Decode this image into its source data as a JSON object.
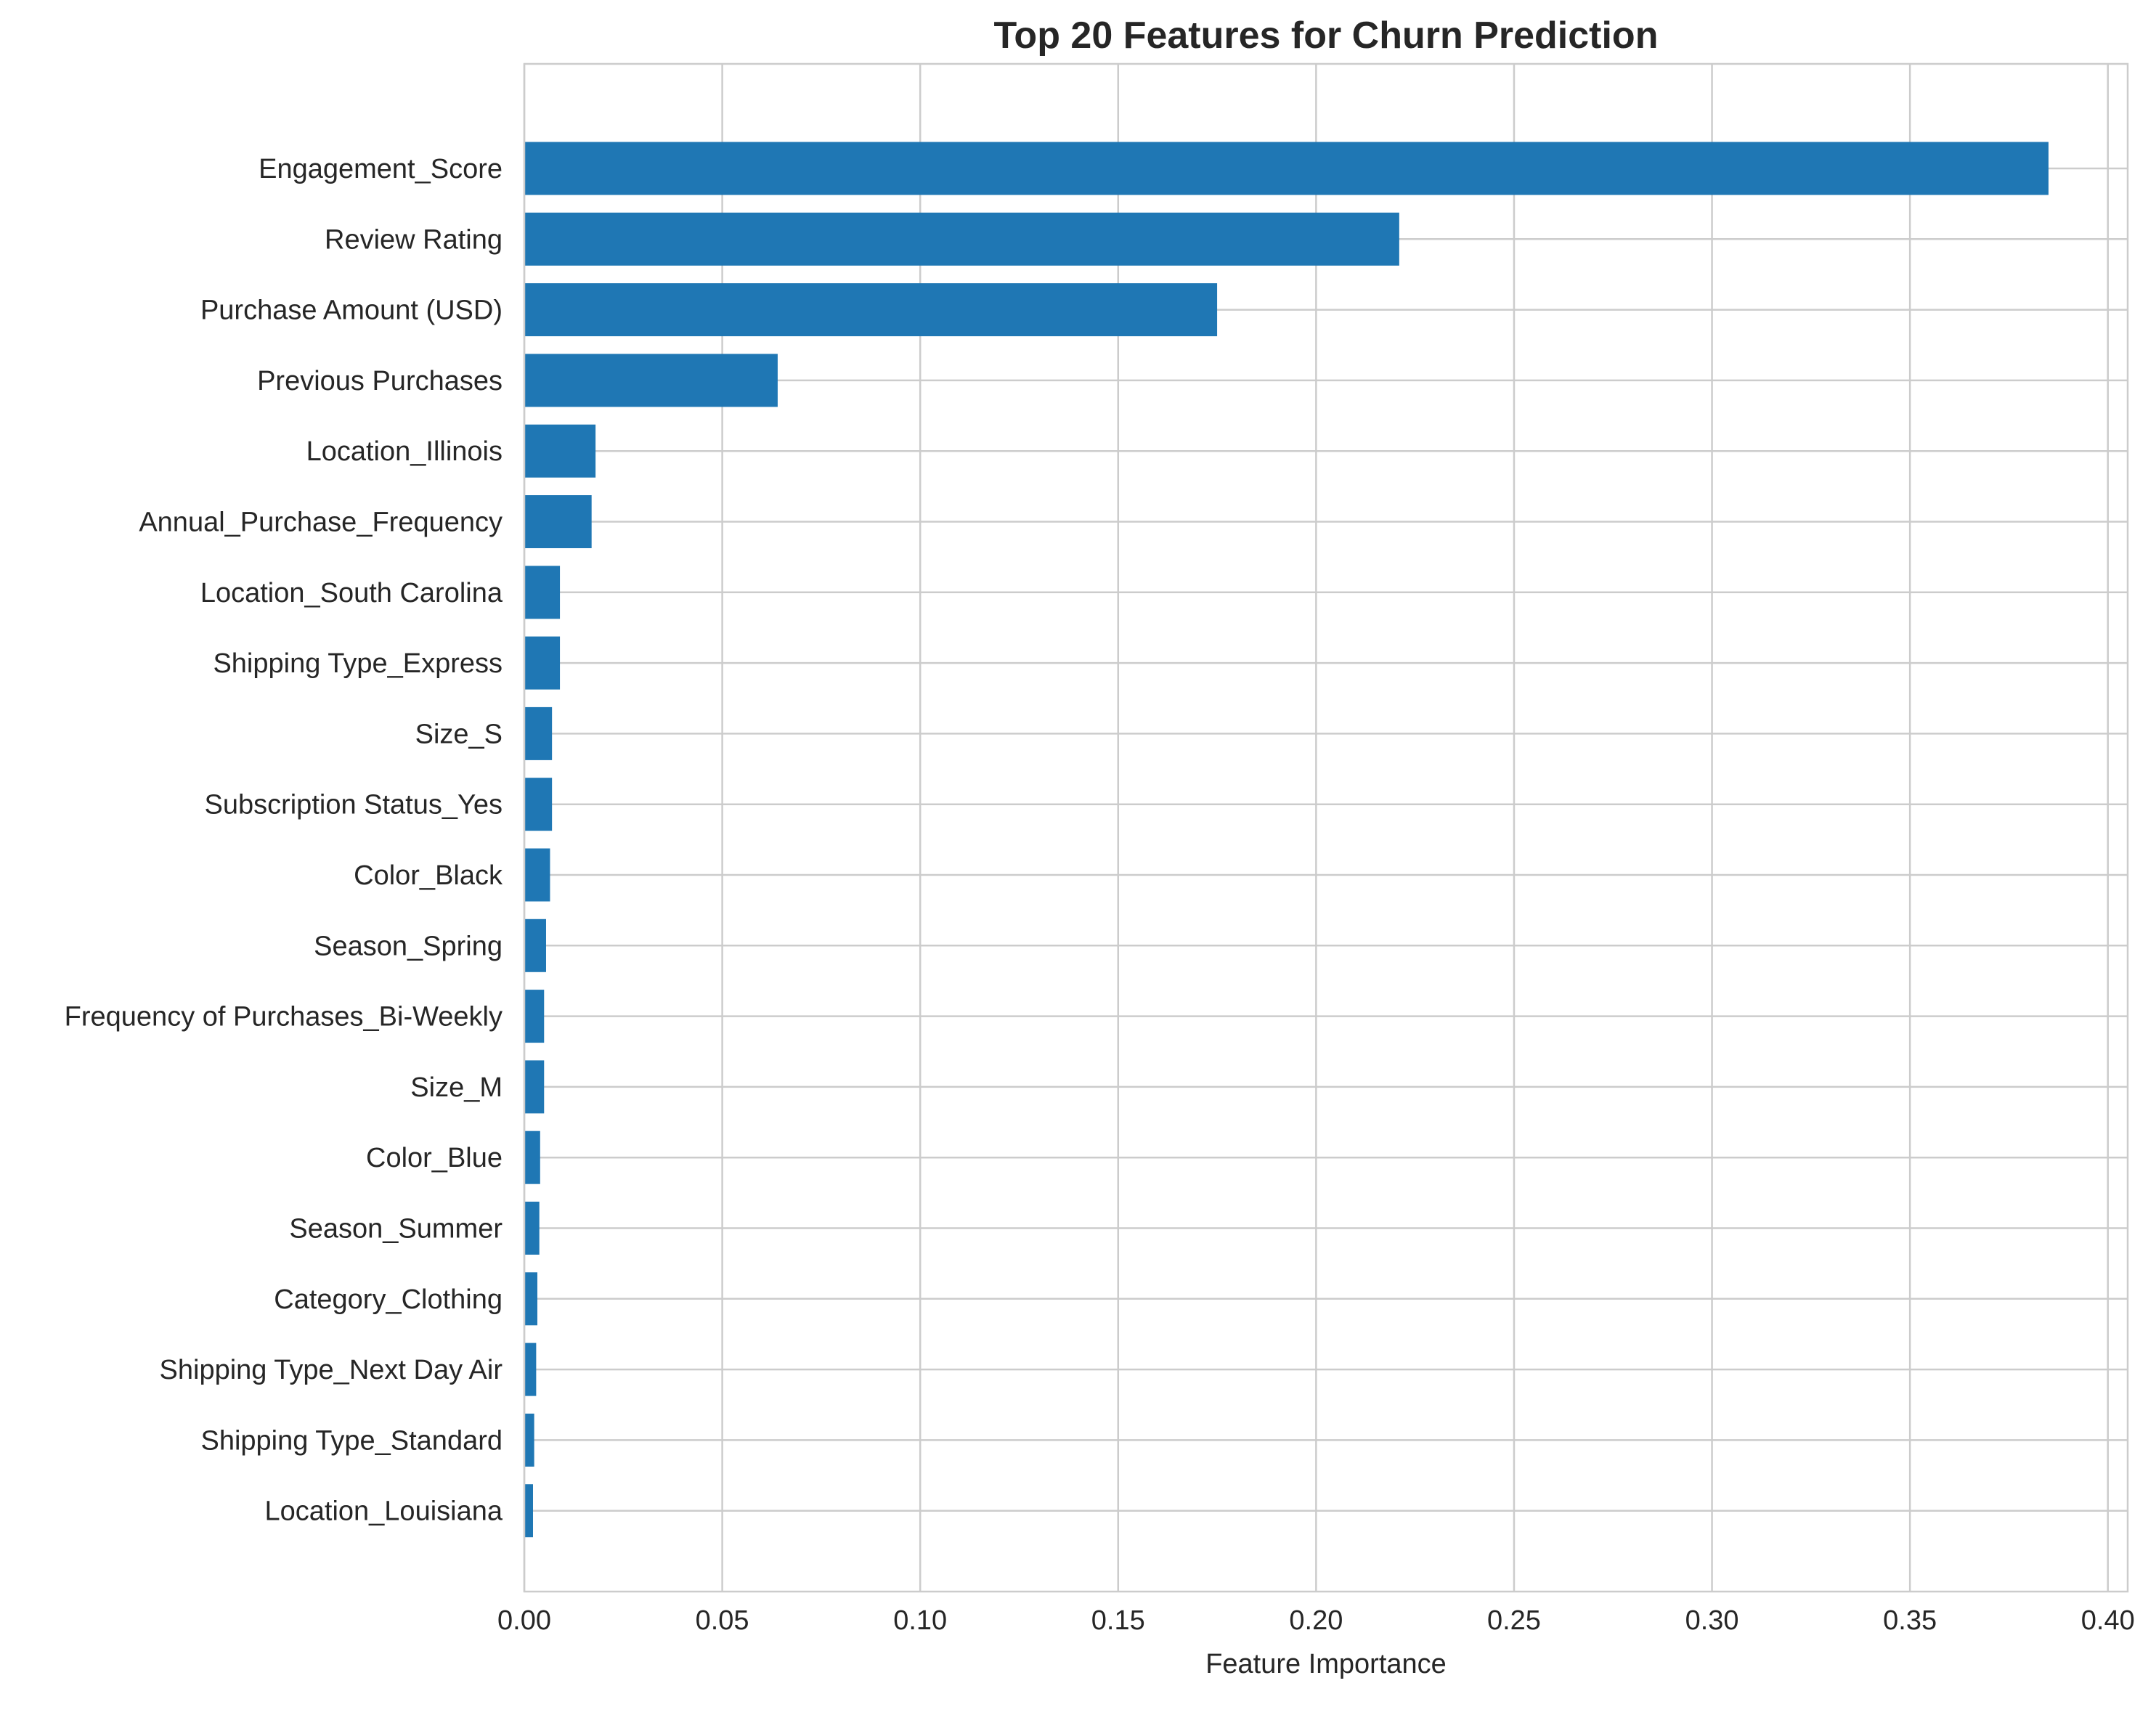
{
  "chart_data": {
    "type": "bar",
    "orientation": "horizontal",
    "title": "Top 20 Features for Churn Prediction",
    "xlabel": "Feature Importance",
    "ylabel": "",
    "xlim": [
      0,
      0.405
    ],
    "xticks": [
      0.0,
      0.05,
      0.1,
      0.15,
      0.2,
      0.25,
      0.3,
      0.35,
      0.4
    ],
    "xtick_labels": [
      "0.00",
      "0.05",
      "0.10",
      "0.15",
      "0.20",
      "0.25",
      "0.30",
      "0.35",
      "0.40"
    ],
    "grid": true,
    "bar_color": "#1f77b4",
    "categories": [
      "Engagement_Score",
      "Review Rating",
      "Purchase Amount (USD)",
      "Previous Purchases",
      "Location_Illinois",
      "Annual_Purchase_Frequency",
      "Location_South Carolina",
      "Shipping Type_Express",
      "Size_S",
      "Subscription Status_Yes",
      "Color_Black",
      "Season_Spring",
      "Frequency of Purchases_Bi-Weekly",
      "Size_M",
      "Color_Blue",
      "Season_Summer",
      "Category_Clothing",
      "Shipping Type_Next Day Air",
      "Shipping Type_Standard",
      "Location_Louisiana"
    ],
    "values": [
      0.385,
      0.221,
      0.175,
      0.064,
      0.018,
      0.017,
      0.009,
      0.009,
      0.007,
      0.007,
      0.0065,
      0.0055,
      0.005,
      0.005,
      0.004,
      0.0038,
      0.0033,
      0.003,
      0.0025,
      0.0022
    ]
  }
}
